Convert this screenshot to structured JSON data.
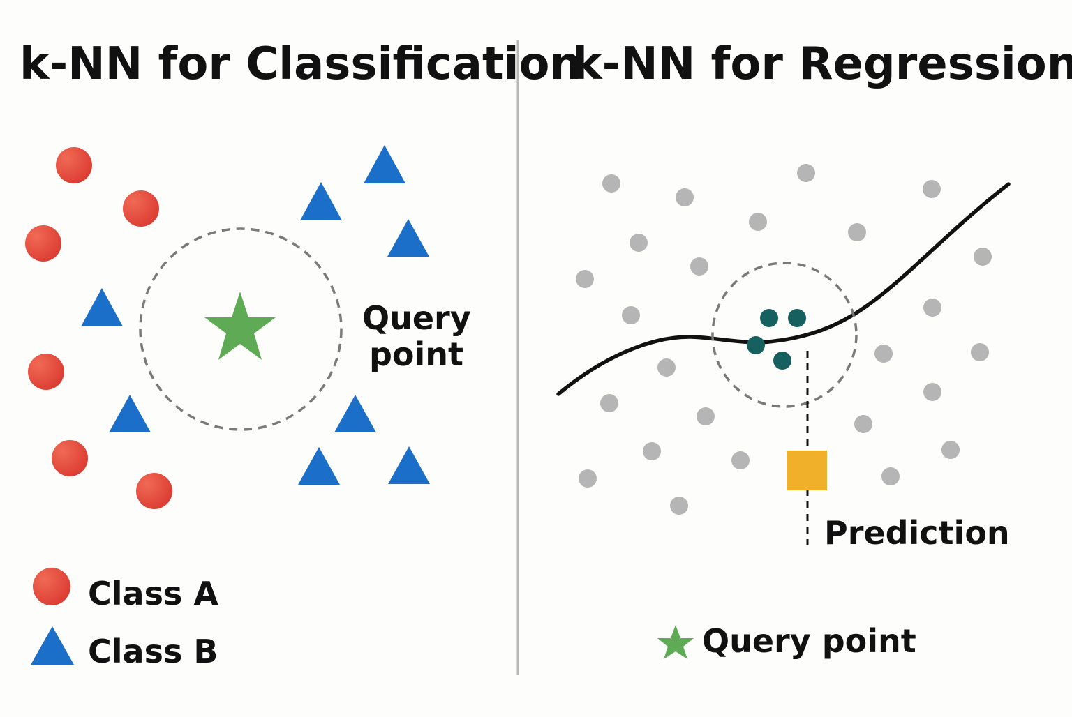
{
  "colors": {
    "class_a": "#e0463b",
    "class_b": "#1b6fc9",
    "query": "#5faa55",
    "neighbor": "#16605f",
    "sample": "#b5b5b5",
    "prediction": "#f0b02a",
    "divider": "#b8b8b8",
    "text": "#111111"
  },
  "classification": {
    "title": "k-NN for Classification",
    "query_label_line1": "Query",
    "query_label_line2": "point",
    "legend": {
      "class_a": "Class A",
      "class_b": "Class B"
    }
  },
  "regression": {
    "title": "k-NN for Regression",
    "prediction_label": "Prediction",
    "legend_query": "Query point"
  }
}
